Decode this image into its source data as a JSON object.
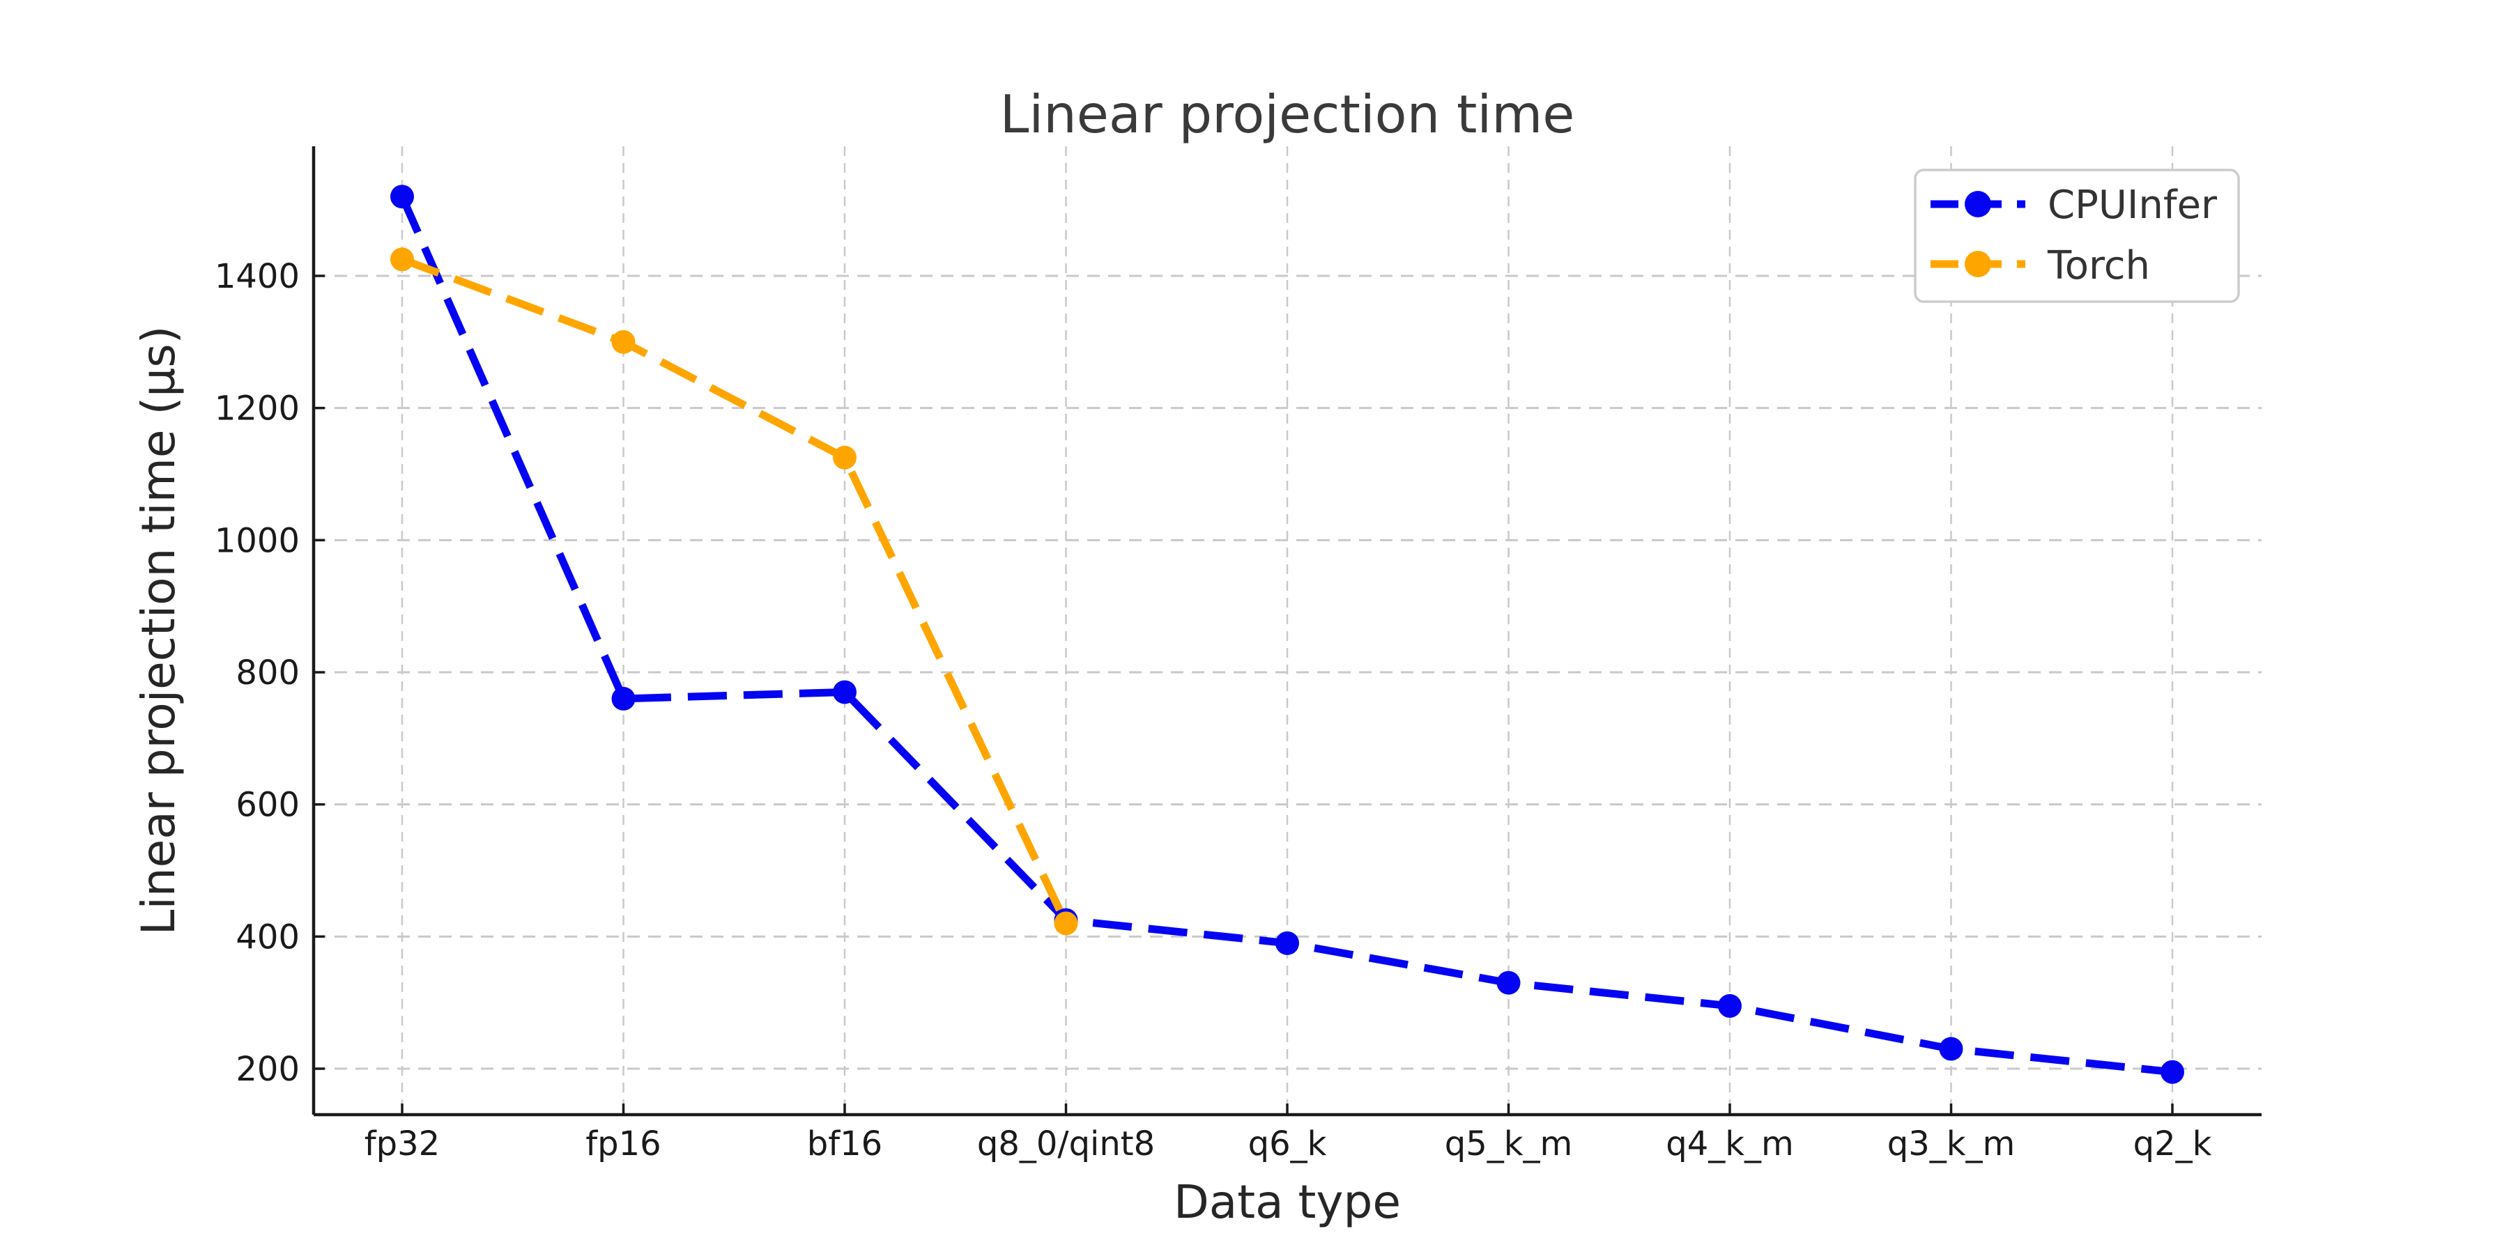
{
  "figure": {
    "background": "#ffffff",
    "plot_background": "#ffffff",
    "grid_color": "#c9c9c9",
    "spine_color": "#1a1a1a",
    "text_color": "#262626",
    "title_color": "#3a3a3a"
  },
  "chart_data": {
    "type": "line",
    "title": "Linear projection time",
    "xlabel": "Data type",
    "ylabel": "Linear projection time (µs)",
    "categories": [
      "fp32",
      "fp16",
      "bf16",
      "q8_0/qint8",
      "q6_k",
      "q5_k_m",
      "q4_k_m",
      "q3_k_m",
      "q2_k"
    ],
    "series": [
      {
        "name": "CPUInfer",
        "color": "#0404f2",
        "marker": "circle",
        "linestyle": "dashed",
        "values": [
          1520,
          760,
          770,
          425,
          390,
          330,
          295,
          230,
          195
        ]
      },
      {
        "name": "Torch",
        "color": "#ffa500",
        "marker": "circle",
        "linestyle": "dashed",
        "values": [
          1425,
          1300,
          1125,
          420
        ]
      }
    ],
    "yticks": [
      200,
      400,
      600,
      800,
      1000,
      1200,
      1400
    ],
    "ylim": [
      130,
      1596
    ],
    "grid": true,
    "grid_style": "dashed",
    "legend_position": "upper right",
    "legend_labels": [
      "CPUInfer",
      "Torch"
    ]
  }
}
